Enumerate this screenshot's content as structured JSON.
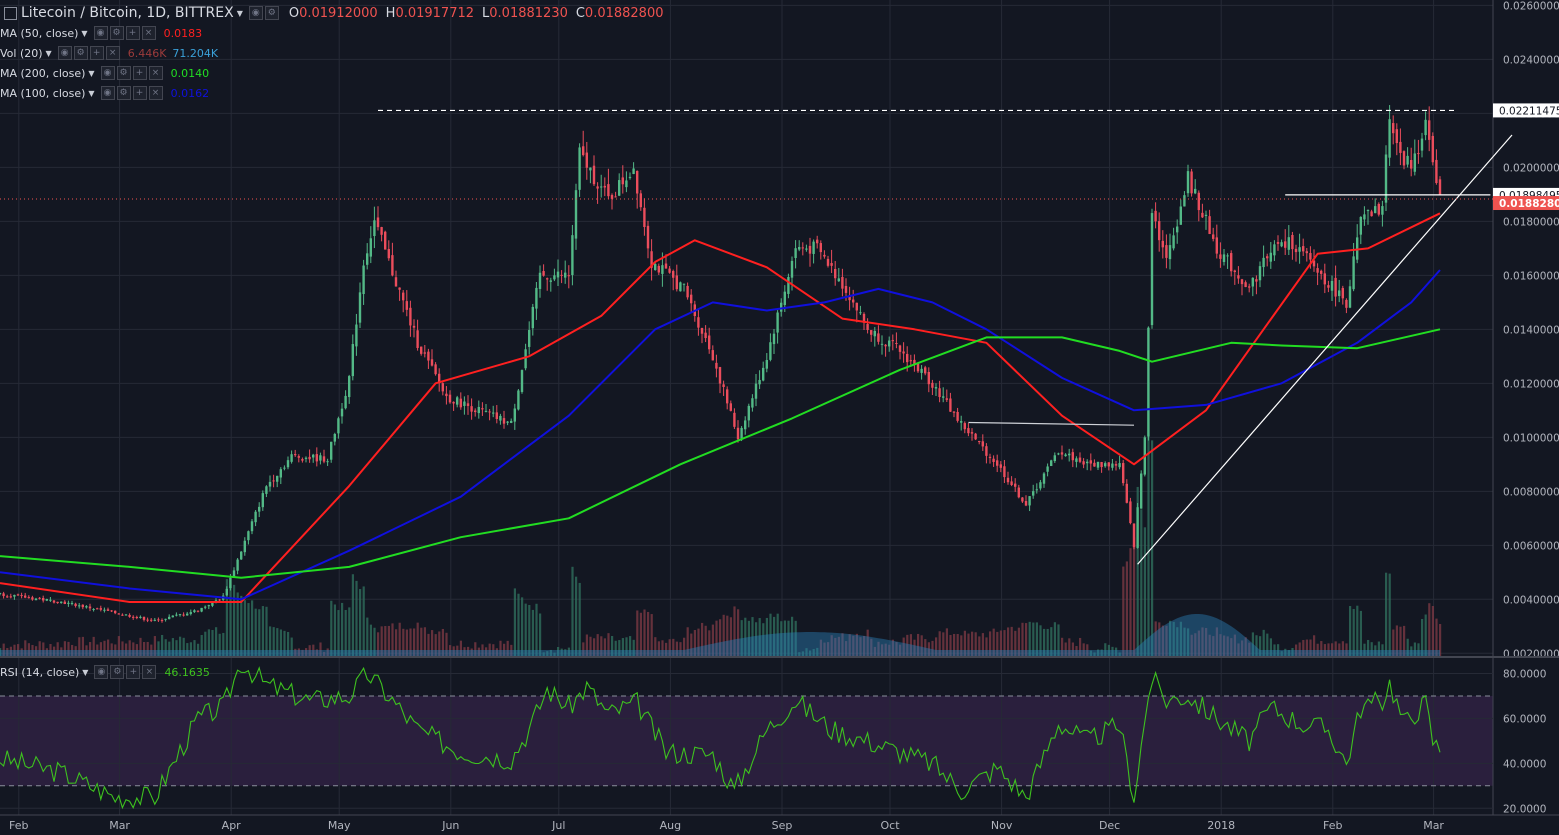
{
  "header": {
    "symbol_title": "Litecoin / Bitcoin, 1D, BITTREX",
    "ohlc": [
      {
        "key": "O",
        "value": "0.01912000"
      },
      {
        "key": "H",
        "value": "0.01917712"
      },
      {
        "key": "L",
        "value": "0.01881230"
      },
      {
        "key": "C",
        "value": "0.01882800"
      }
    ]
  },
  "indicators": {
    "ma50": {
      "label": "MA (50, close)",
      "value": "0.0183",
      "color": "#ff2020"
    },
    "vol": {
      "label": "Vol (20)",
      "value1": "6.446K",
      "value2": "71.204K",
      "color1": "#9c3b3b",
      "color2": "#3aa0d8"
    },
    "ma200": {
      "label": "MA (200, close)",
      "value": "0.0140",
      "color": "#22dd22"
    },
    "ma100": {
      "label": "MA (100, close)",
      "value": "0.0162",
      "color": "#1010dd"
    },
    "rsi": {
      "label": "RSI (14, close)",
      "value": "46.1635",
      "color": "#3ec21f"
    }
  },
  "colors": {
    "up": "#53b987",
    "down": "#eb4d5c",
    "background": "#131722",
    "grid": "#262a36",
    "text": "#b2b5be"
  },
  "chart_data": [
    {
      "type": "candlestick",
      "title": "Litecoin / Bitcoin, 1D, BITTREX",
      "x_tick_labels": [
        "Feb",
        "Mar",
        "Apr",
        "May",
        "Jun",
        "Jul",
        "Aug",
        "Sep",
        "Oct",
        "Nov",
        "Dec",
        "2018",
        "Feb",
        "Mar"
      ],
      "y_tick_labels": [
        "0.02600000",
        "0.02400000",
        "0.02200000",
        "0.02000000",
        "0.01800000",
        "0.01600000",
        "0.01400000",
        "0.01200000",
        "0.01000000",
        "0.00800000",
        "0.00600000",
        "0.00400000",
        "0.00200000"
      ],
      "ylim": [
        0.0019,
        0.0262
      ],
      "price_markers": [
        {
          "label": "0.02211475",
          "value": 0.02211
        },
        {
          "label": "0.01898495",
          "value": 0.01898
        },
        {
          "label": "0.01882800",
          "value": 0.018828,
          "color": "#ef5350"
        }
      ],
      "close_anchors": [
        [
          "2017-01-24",
          0.0042
        ],
        [
          "2017-02-10",
          0.0039
        ],
        [
          "2017-02-25",
          0.0035
        ],
        [
          "2017-03-08",
          0.0032
        ],
        [
          "2017-03-20",
          0.0036
        ],
        [
          "2017-03-27",
          0.0041
        ],
        [
          "2017-04-01",
          0.0058
        ],
        [
          "2017-04-08",
          0.0082
        ],
        [
          "2017-04-15",
          0.0093
        ],
        [
          "2017-04-25",
          0.0092
        ],
        [
          "2017-05-01",
          0.0122
        ],
        [
          "2017-05-05",
          0.0165
        ],
        [
          "2017-05-08",
          0.018
        ],
        [
          "2017-05-12",
          0.0165
        ],
        [
          "2017-05-20",
          0.0135
        ],
        [
          "2017-05-28",
          0.0115
        ],
        [
          "2017-06-06",
          0.011
        ],
        [
          "2017-06-15",
          0.0105
        ],
        [
          "2017-06-23",
          0.016
        ],
        [
          "2017-07-01",
          0.016
        ],
        [
          "2017-07-04",
          0.0205
        ],
        [
          "2017-07-12",
          0.0188
        ],
        [
          "2017-07-19",
          0.02
        ],
        [
          "2017-07-24",
          0.0165
        ],
        [
          "2017-08-02",
          0.0155
        ],
        [
          "2017-08-10",
          0.013
        ],
        [
          "2017-08-17",
          0.01
        ],
        [
          "2017-08-25",
          0.013
        ],
        [
          "2017-09-02",
          0.017
        ],
        [
          "2017-09-08",
          0.017
        ],
        [
          "2017-09-16",
          0.0155
        ],
        [
          "2017-09-22",
          0.014
        ],
        [
          "2017-10-01",
          0.0132
        ],
        [
          "2017-10-10",
          0.012
        ],
        [
          "2017-10-18",
          0.0105
        ],
        [
          "2017-10-28",
          0.009
        ],
        [
          "2017-11-05",
          0.0075
        ],
        [
          "2017-11-14",
          0.0095
        ],
        [
          "2017-11-22",
          0.009
        ],
        [
          "2017-12-01",
          0.009
        ],
        [
          "2017-12-05",
          0.006
        ],
        [
          "2017-12-08",
          0.01
        ],
        [
          "2017-12-10",
          0.0185
        ],
        [
          "2017-12-14",
          0.0165
        ],
        [
          "2017-12-20",
          0.0196
        ],
        [
          "2017-12-28",
          0.017
        ],
        [
          "2018-01-06",
          0.0155
        ],
        [
          "2018-01-12",
          0.017
        ],
        [
          "2018-01-18",
          0.0172
        ],
        [
          "2018-01-26",
          0.016
        ],
        [
          "2018-02-02",
          0.015
        ],
        [
          "2018-02-06",
          0.018
        ],
        [
          "2018-02-12",
          0.0185
        ],
        [
          "2018-02-14",
          0.022
        ],
        [
          "2018-02-18",
          0.02
        ],
        [
          "2018-02-22",
          0.0205
        ],
        [
          "2018-02-24",
          0.022
        ],
        [
          "2018-02-26",
          0.02
        ],
        [
          "2018-02-28",
          0.01883
        ]
      ],
      "moving_averages": [
        {
          "name": "MA (50, close)",
          "color": "#ff2020",
          "points": [
            [
              "2017-01-24",
              0.0046
            ],
            [
              "2017-03-01",
              0.0039
            ],
            [
              "2017-04-01",
              0.0039
            ],
            [
              "2017-05-01",
              0.0082
            ],
            [
              "2017-05-25",
              0.012
            ],
            [
              "2017-06-20",
              0.013
            ],
            [
              "2017-07-10",
              0.0145
            ],
            [
              "2017-07-25",
              0.0165
            ],
            [
              "2017-08-05",
              0.0173
            ],
            [
              "2017-08-25",
              0.0163
            ],
            [
              "2017-09-15",
              0.0144
            ],
            [
              "2017-10-05",
              0.014
            ],
            [
              "2017-10-25",
              0.0135
            ],
            [
              "2017-11-15",
              0.0108
            ],
            [
              "2017-12-05",
              0.009
            ],
            [
              "2017-12-25",
              0.011
            ],
            [
              "2018-01-10",
              0.014
            ],
            [
              "2018-01-25",
              0.0168
            ],
            [
              "2018-02-08",
              0.017
            ],
            [
              "2018-02-28",
              0.0183
            ]
          ]
        },
        {
          "name": "MA (100, close)",
          "color": "#1010dd",
          "points": [
            [
              "2017-01-24",
              0.005
            ],
            [
              "2017-03-01",
              0.0044
            ],
            [
              "2017-04-01",
              0.004
            ],
            [
              "2017-05-01",
              0.0058
            ],
            [
              "2017-06-01",
              0.0078
            ],
            [
              "2017-07-01",
              0.0108
            ],
            [
              "2017-07-25",
              0.014
            ],
            [
              "2017-08-10",
              0.015
            ],
            [
              "2017-08-25",
              0.0147
            ],
            [
              "2017-09-10",
              0.015
            ],
            [
              "2017-09-25",
              0.0155
            ],
            [
              "2017-10-10",
              0.015
            ],
            [
              "2017-10-25",
              0.014
            ],
            [
              "2017-11-15",
              0.0122
            ],
            [
              "2017-12-05",
              0.011
            ],
            [
              "2017-12-25",
              0.0112
            ],
            [
              "2018-01-15",
              0.012
            ],
            [
              "2018-02-05",
              0.0135
            ],
            [
              "2018-02-20",
              0.015
            ],
            [
              "2018-02-28",
              0.0162
            ]
          ]
        },
        {
          "name": "MA (200, close)",
          "color": "#22dd22",
          "points": [
            [
              "2017-01-24",
              0.0056
            ],
            [
              "2017-03-01",
              0.0052
            ],
            [
              "2017-04-01",
              0.0048
            ],
            [
              "2017-05-01",
              0.0052
            ],
            [
              "2017-06-01",
              0.0063
            ],
            [
              "2017-07-01",
              0.007
            ],
            [
              "2017-08-01",
              0.009
            ],
            [
              "2017-09-01",
              0.0107
            ],
            [
              "2017-10-01",
              0.0125
            ],
            [
              "2017-10-25",
              0.0137
            ],
            [
              "2017-11-15",
              0.0137
            ],
            [
              "2017-12-01",
              0.0132
            ],
            [
              "2017-12-10",
              0.0128
            ],
            [
              "2018-01-01",
              0.0135
            ],
            [
              "2018-01-15",
              0.0134
            ],
            [
              "2018-02-05",
              0.0133
            ],
            [
              "2018-02-28",
              0.014
            ]
          ]
        }
      ],
      "trendlines": [
        {
          "from": [
            "2017-05-09",
            0.02211
          ],
          "to": [
            "2018-03-05",
            0.02211
          ],
          "style": "dashed",
          "color": "#ffffff"
        },
        {
          "from": [
            "2018-01-16",
            0.01898
          ],
          "to": [
            "2018-03-14",
            0.01898
          ],
          "style": "solid",
          "color": "#ffffff"
        },
        {
          "from": [
            "2017-10-20",
            0.01055
          ],
          "to": [
            "2017-12-05",
            0.01045
          ],
          "style": "solid",
          "color": "#cfd2d8"
        },
        {
          "from": [
            "2017-12-06",
            0.0053
          ],
          "to": [
            "2018-03-20",
            0.0212
          ],
          "style": "solid",
          "color": "#ffffff"
        }
      ]
    },
    {
      "type": "line",
      "title": "RSI (14, close)",
      "series_name": "RSI (14, close)",
      "y_tick_labels": [
        "80.0000",
        "60.0000",
        "40.0000",
        "20.0000"
      ],
      "ylim": [
        17,
        86
      ],
      "bands": [
        70,
        30
      ],
      "points": [
        [
          "2017-01-24",
          42
        ],
        [
          "2017-02-10",
          36
        ],
        [
          "2017-02-25",
          25
        ],
        [
          "2017-03-08",
          25
        ],
        [
          "2017-03-20",
          60
        ],
        [
          "2017-03-27",
          65
        ],
        [
          "2017-04-01",
          85
        ],
        [
          "2017-04-08",
          75
        ],
        [
          "2017-04-20",
          68
        ],
        [
          "2017-05-01",
          70
        ],
        [
          "2017-05-06",
          80
        ],
        [
          "2017-05-12",
          70
        ],
        [
          "2017-05-20",
          55
        ],
        [
          "2017-06-01",
          45
        ],
        [
          "2017-06-15",
          42
        ],
        [
          "2017-06-20",
          55
        ],
        [
          "2017-06-25",
          73
        ],
        [
          "2017-07-01",
          65
        ],
        [
          "2017-07-06",
          74
        ],
        [
          "2017-07-12",
          62
        ],
        [
          "2017-07-20",
          67
        ],
        [
          "2017-07-28",
          45
        ],
        [
          "2017-08-10",
          44
        ],
        [
          "2017-08-16",
          28
        ],
        [
          "2017-08-25",
          55
        ],
        [
          "2017-09-02",
          68
        ],
        [
          "2017-09-12",
          55
        ],
        [
          "2017-09-22",
          50
        ],
        [
          "2017-10-01",
          45
        ],
        [
          "2017-10-10",
          40
        ],
        [
          "2017-10-18",
          28
        ],
        [
          "2017-10-28",
          38
        ],
        [
          "2017-11-05",
          25
        ],
        [
          "2017-11-14",
          58
        ],
        [
          "2017-11-22",
          50
        ],
        [
          "2017-12-01",
          57
        ],
        [
          "2017-12-05",
          25
        ],
        [
          "2017-12-09",
          70
        ],
        [
          "2017-12-10",
          78
        ],
        [
          "2017-12-14",
          68
        ],
        [
          "2017-12-20",
          70
        ],
        [
          "2017-12-28",
          60
        ],
        [
          "2018-01-06",
          50
        ],
        [
          "2018-01-12",
          65
        ],
        [
          "2018-01-20",
          58
        ],
        [
          "2018-01-28",
          55
        ],
        [
          "2018-02-02",
          40
        ],
        [
          "2018-02-06",
          65
        ],
        [
          "2018-02-12",
          68
        ],
        [
          "2018-02-14",
          76
        ],
        [
          "2018-02-18",
          58
        ],
        [
          "2018-02-24",
          67
        ],
        [
          "2018-02-26",
          50
        ],
        [
          "2018-02-28",
          46
        ]
      ]
    }
  ]
}
